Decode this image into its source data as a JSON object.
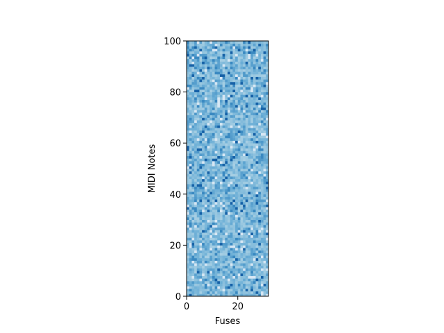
{
  "chart_data": {
    "type": "heatmap",
    "title": "",
    "xlabel": "Fuses",
    "ylabel": "MIDI Notes",
    "xlim": [
      0,
      32
    ],
    "ylim": [
      0,
      100
    ],
    "xticks": [
      0,
      20
    ],
    "yticks": [
      0,
      20,
      40,
      60,
      80,
      100
    ],
    "n_columns": 32,
    "n_rows": 100,
    "colormap": "Blues",
    "value_range": [
      0,
      1
    ],
    "grid": false,
    "legend": "none"
  }
}
